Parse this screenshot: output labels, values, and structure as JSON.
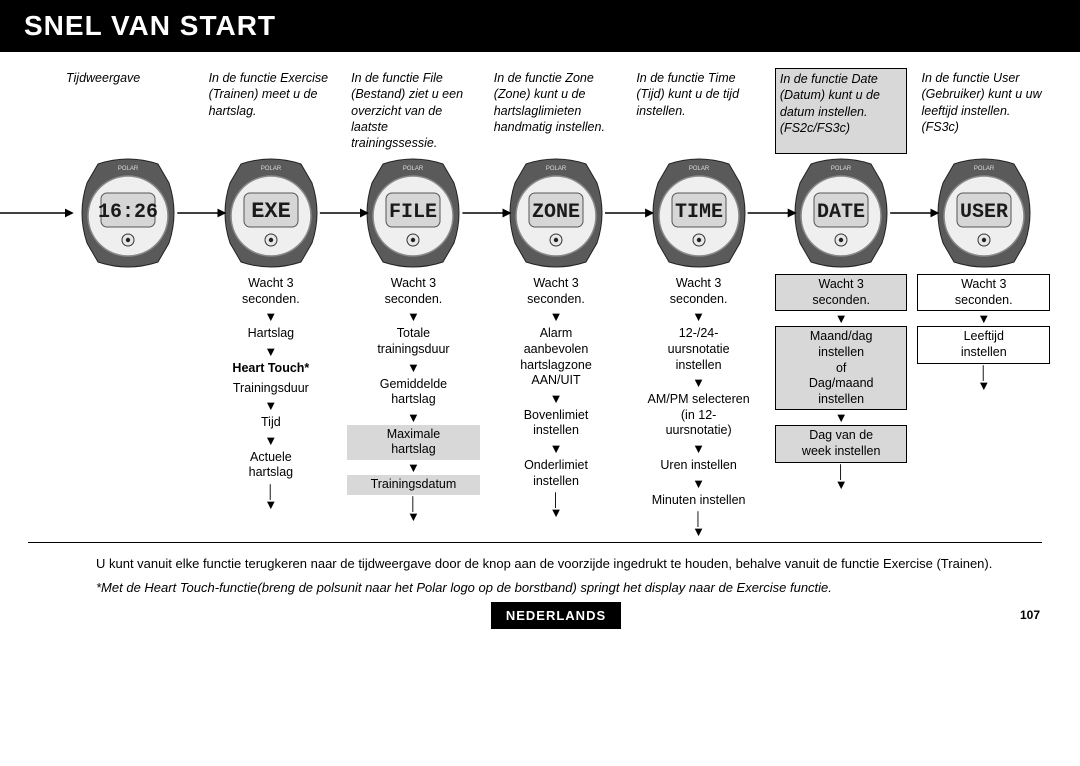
{
  "title": "SNEL VAN START",
  "columns": [
    {
      "id": "tijd",
      "desc": "Tijdweergave",
      "desc_boxed": false,
      "watch_display": "16:26",
      "watch_fontsize": 20,
      "steps": []
    },
    {
      "id": "exe",
      "desc": "In de functie Exercise (Trainen) meet u de hartslag.",
      "desc_boxed": false,
      "watch_display": "EXE",
      "watch_fontsize": 22,
      "steps": [
        {
          "text": "Wacht 3\nseconden.",
          "style": ""
        },
        {
          "text": "Hartslag",
          "style": ""
        },
        {
          "text": "Heart Touch*",
          "style": "bold",
          "no_arrow_after": true
        },
        {
          "text": "Trainingsduur",
          "style": ""
        },
        {
          "text": "Tijd",
          "style": ""
        },
        {
          "text": "Actuele\nhartslag",
          "style": ""
        }
      ]
    },
    {
      "id": "file",
      "desc": "In de functie File (Bestand) ziet u een overzicht van de laatste trainingssessie.",
      "desc_boxed": false,
      "watch_display": "FILE",
      "watch_fontsize": 20,
      "steps": [
        {
          "text": "Wacht 3\nseconden.",
          "style": ""
        },
        {
          "text": "Totale\ntrainingsduur",
          "style": ""
        },
        {
          "text": "Gemiddelde\nhartslag",
          "style": ""
        },
        {
          "text": "Maximale\nhartslag",
          "style": "shaded"
        },
        {
          "text": "Trainingsdatum",
          "style": "shaded"
        }
      ]
    },
    {
      "id": "zone",
      "desc": "In de functie Zone (Zone) kunt u de hartslaglimieten handmatig instellen.",
      "desc_boxed": false,
      "watch_display": "ZONE",
      "watch_fontsize": 20,
      "steps": [
        {
          "text": "Wacht 3\nseconden.",
          "style": ""
        },
        {
          "text": "Alarm\naanbevolen\nhartslagzone\nAAN/UIT",
          "style": ""
        },
        {
          "text": "Bovenlimiet\ninstellen",
          "style": ""
        },
        {
          "text": "Onderlimiet\ninstellen",
          "style": ""
        }
      ]
    },
    {
      "id": "time",
      "desc": "In de functie Time (Tijd) kunt u de tijd instellen.",
      "desc_boxed": false,
      "watch_display": "TIME",
      "watch_fontsize": 20,
      "steps": [
        {
          "text": "Wacht 3\nseconden.",
          "style": ""
        },
        {
          "text": "12-/24-\nuursnotatie\ninstellen",
          "style": ""
        },
        {
          "text": "AM/PM selecteren\n(in 12-\nuursnotatie)",
          "style": ""
        },
        {
          "text": "Uren instellen",
          "style": ""
        },
        {
          "text": "Minuten instellen",
          "style": ""
        }
      ]
    },
    {
      "id": "date",
      "desc": "In de functie Date (Datum) kunt u de datum instellen. (FS2c/FS3c)",
      "desc_boxed": true,
      "watch_display": "DATE",
      "watch_fontsize": 20,
      "steps": [
        {
          "text": "Wacht 3\nseconden.",
          "style": "shaded framed"
        },
        {
          "text": "Maand/dag\ninstellen\nof\nDag/maand\ninstellen",
          "style": "shaded framed"
        },
        {
          "text": "Dag van de\nweek instellen",
          "style": "shaded framed"
        }
      ]
    },
    {
      "id": "user",
      "desc": "In de functie User (Gebruiker) kunt u uw leeftijd instellen. (FS3c)",
      "desc_boxed": false,
      "watch_display": "USER",
      "watch_fontsize": 20,
      "steps": [
        {
          "text": "Wacht 3\nseconden.",
          "style": "framed"
        },
        {
          "text": "Leeftijd\ninstellen",
          "style": "framed"
        }
      ]
    }
  ],
  "note1": "U kunt vanuit elke functie terugkeren naar de tijdweergave door de knop aan de voorzijde ingedrukt te houden, behalve vanuit de functie Exercise (Trainen).",
  "note2": "*Met de Heart Touch-functie(breng de polsunit naar het Polar logo op de borstband) springt het display naar de Exercise functie.",
  "footer_tag": "NEDERLANDS",
  "page_num": "107",
  "colors": {
    "header_bg": "#000000",
    "header_fg": "#ffffff",
    "shade": "#d8d8d8",
    "watch_body": "#5a5a5a",
    "watch_face": "#efefef"
  }
}
